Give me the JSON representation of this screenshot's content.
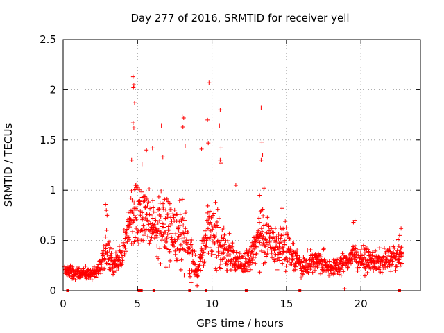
{
  "chart_data": {
    "type": "scatter",
    "title": "Day 277 of 2016, SRMTID for receiver yell",
    "xlabel": "GPS time / hours",
    "ylabel": "SRMTID / TECUs",
    "xlim": [
      0,
      24
    ],
    "ylim": [
      0,
      2.5
    ],
    "xticks": [
      {
        "v": 0,
        "label": "0"
      },
      {
        "v": 5,
        "label": "5"
      },
      {
        "v": 10,
        "label": "10"
      },
      {
        "v": 15,
        "label": "15"
      },
      {
        "v": 20,
        "label": "20"
      }
    ],
    "yticks": [
      {
        "v": 0,
        "label": "0"
      },
      {
        "v": 0.5,
        "label": "0.5"
      },
      {
        "v": 1,
        "label": "1"
      },
      {
        "v": 1.5,
        "label": "1.5"
      },
      {
        "v": 2,
        "label": "2"
      },
      {
        "v": 2.5,
        "label": "2.5"
      }
    ],
    "grid": true,
    "marker": "plus",
    "series": [
      {
        "name": "SRMTID yell",
        "color": "#ff0000",
        "envelope": [
          [
            0.0,
            0.2,
            0.06
          ],
          [
            1.0,
            0.18,
            0.06
          ],
          [
            2.0,
            0.17,
            0.06
          ],
          [
            2.5,
            0.22,
            0.08
          ],
          [
            2.9,
            0.45,
            0.2
          ],
          [
            3.4,
            0.25,
            0.1
          ],
          [
            4.0,
            0.35,
            0.12
          ],
          [
            4.6,
            0.8,
            0.35
          ],
          [
            5.5,
            0.7,
            0.3
          ],
          [
            6.5,
            0.65,
            0.3
          ],
          [
            7.5,
            0.6,
            0.28
          ],
          [
            8.3,
            0.5,
            0.3
          ],
          [
            9.0,
            0.2,
            0.12
          ],
          [
            9.8,
            0.6,
            0.3
          ],
          [
            10.5,
            0.5,
            0.25
          ],
          [
            11.2,
            0.35,
            0.15
          ],
          [
            12.3,
            0.25,
            0.1
          ],
          [
            13.2,
            0.55,
            0.3
          ],
          [
            14.0,
            0.45,
            0.2
          ],
          [
            15.0,
            0.45,
            0.2
          ],
          [
            16.0,
            0.25,
            0.1
          ],
          [
            17.0,
            0.3,
            0.12
          ],
          [
            18.2,
            0.22,
            0.08
          ],
          [
            19.5,
            0.35,
            0.12
          ],
          [
            21.0,
            0.28,
            0.1
          ],
          [
            22.8,
            0.35,
            0.12
          ]
        ],
        "points": [
          [
            4.7,
            2.13
          ],
          [
            4.75,
            2.05
          ],
          [
            4.72,
            2.02
          ],
          [
            4.8,
            1.87
          ],
          [
            4.7,
            1.67
          ],
          [
            4.75,
            1.62
          ],
          [
            9.8,
            2.07
          ],
          [
            10.55,
            1.8
          ],
          [
            13.3,
            1.82
          ],
          [
            13.35,
            1.48
          ],
          [
            9.7,
            1.7
          ],
          [
            9.75,
            1.47
          ],
          [
            6.6,
            1.64
          ],
          [
            8.0,
            1.73
          ],
          [
            8.1,
            1.72
          ],
          [
            8.05,
            1.63
          ],
          [
            10.5,
            1.64
          ],
          [
            10.6,
            1.42
          ],
          [
            10.55,
            1.3
          ],
          [
            10.6,
            1.27
          ],
          [
            9.3,
            1.41
          ],
          [
            8.2,
            1.44
          ],
          [
            13.4,
            1.35
          ],
          [
            13.3,
            1.3
          ],
          [
            5.6,
            1.4
          ],
          [
            6.0,
            1.42
          ],
          [
            6.7,
            1.33
          ],
          [
            5.3,
            1.26
          ],
          [
            4.6,
            1.3
          ],
          [
            11.6,
            1.05
          ],
          [
            13.5,
            1.02
          ],
          [
            13.2,
            0.95
          ],
          [
            14.7,
            0.82
          ],
          [
            2.85,
            0.86
          ],
          [
            2.9,
            0.8
          ],
          [
            2.95,
            0.75
          ],
          [
            0.3,
            0.0
          ],
          [
            5.1,
            0.0
          ],
          [
            5.25,
            0.0
          ],
          [
            6.1,
            0.0
          ],
          [
            8.5,
            0.0
          ],
          [
            9.6,
            0.0
          ],
          [
            12.3,
            0.0
          ],
          [
            15.9,
            0.0
          ],
          [
            22.6,
            0.0
          ],
          [
            22.7,
            0.62
          ],
          [
            22.6,
            0.55
          ],
          [
            19.6,
            0.7
          ],
          [
            19.5,
            0.68
          ],
          [
            18.9,
            0.02
          ],
          [
            9.0,
            0.05
          ],
          [
            8.6,
            0.08
          ]
        ]
      }
    ]
  }
}
